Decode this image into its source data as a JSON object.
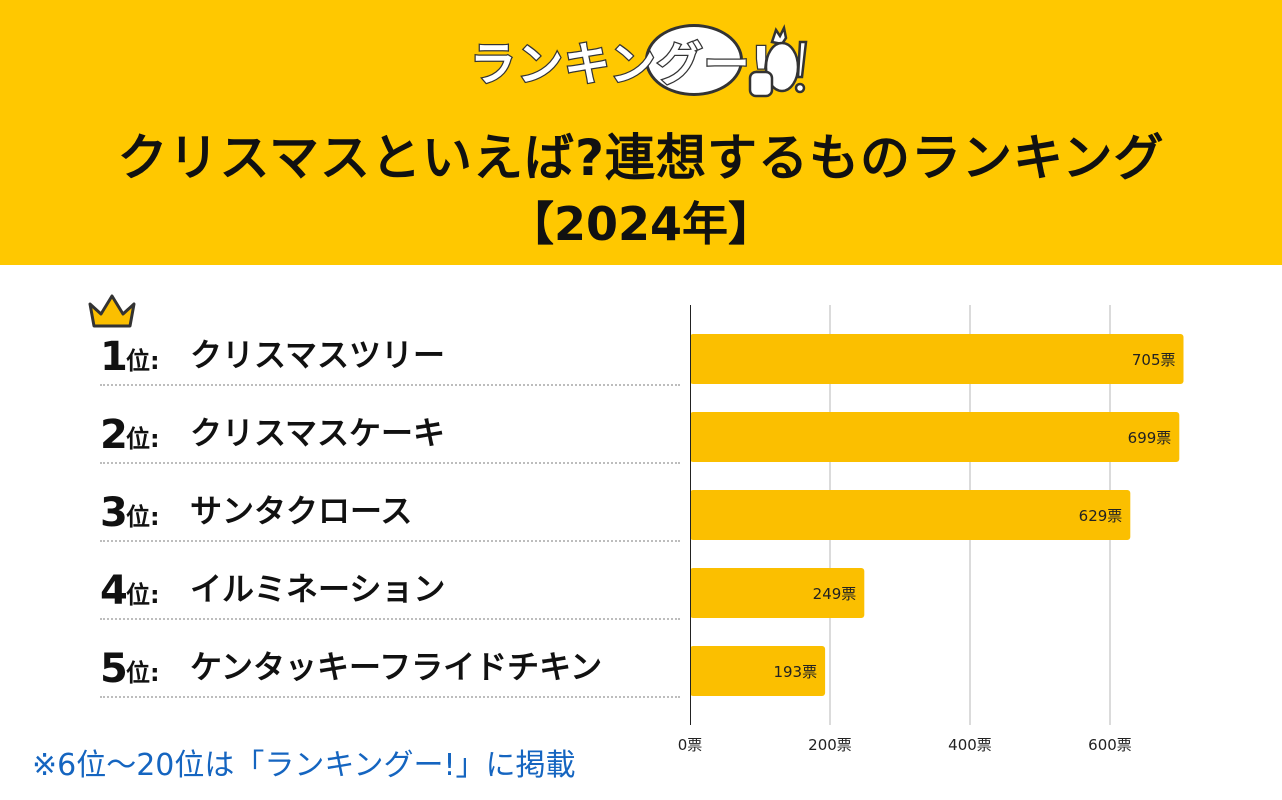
{
  "header": {
    "logo_text": "ランキングー!",
    "title": "クリスマスといえば?連想するものランキング",
    "subtitle": "【2024年】",
    "background_color": "#ffc800"
  },
  "ranking": [
    {
      "num": "1",
      "suffix": "位",
      "sep": ":",
      "label": "クリスマスツリー"
    },
    {
      "num": "2",
      "suffix": "位",
      "sep": ":",
      "label": "クリスマスケーキ"
    },
    {
      "num": "3",
      "suffix": "位",
      "sep": ":",
      "label": "サンタクロース"
    },
    {
      "num": "4",
      "suffix": "位",
      "sep": ":",
      "label": "イルミネーション"
    },
    {
      "num": "5",
      "suffix": "位",
      "sep": ":",
      "label": "ケンタッキーフライドチキン"
    }
  ],
  "footnote": "※6位〜20位は「ランキングー!」に掲載",
  "chart_data": {
    "type": "bar",
    "orientation": "horizontal",
    "categories": [
      "クリスマスツリー",
      "クリスマスケーキ",
      "サンタクロース",
      "イルミネーション",
      "ケンタッキーフライドチキン"
    ],
    "values": [
      705,
      699,
      629,
      249,
      193
    ],
    "value_labels": [
      "705票",
      "699票",
      "629票",
      "249票",
      "193票"
    ],
    "xlim": [
      0,
      750
    ],
    "xticks": [
      0,
      200,
      400,
      600
    ],
    "xtick_labels": [
      "0票",
      "200票",
      "400票",
      "600票"
    ],
    "grid": true,
    "bar_color": "#fbbf00"
  }
}
